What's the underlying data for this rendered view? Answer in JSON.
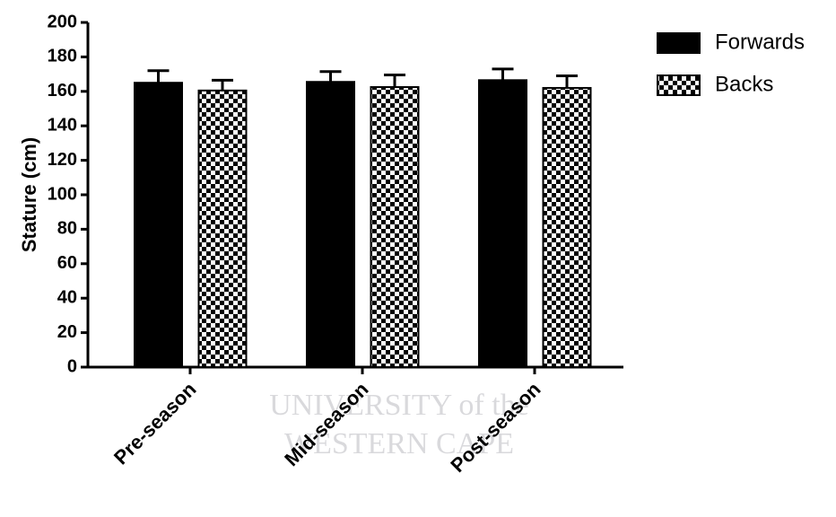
{
  "chart_data": {
    "type": "bar",
    "watermark": [
      "UNIVERSITY of the",
      "WESTERN CAPE"
    ],
    "y_label": "Stature (cm)",
    "categories": [
      "Pre-season",
      "Mid-season",
      "Post-season"
    ],
    "series": [
      {
        "name": "Forwards",
        "color": "#000000",
        "pattern": "solid",
        "values": [
          165,
          165.5,
          166.5
        ],
        "errors": [
          7,
          6,
          6.5
        ]
      },
      {
        "name": "Backs",
        "color": "#000000",
        "pattern": "checkerboard",
        "values": [
          160.5,
          162.5,
          162
        ],
        "errors": [
          6,
          7,
          7
        ]
      }
    ],
    "ylim": [
      0,
      200
    ],
    "yticks": [
      0,
      20,
      40,
      60,
      80,
      100,
      120,
      140,
      160,
      180,
      200
    ],
    "grid": false,
    "legend": "right"
  }
}
